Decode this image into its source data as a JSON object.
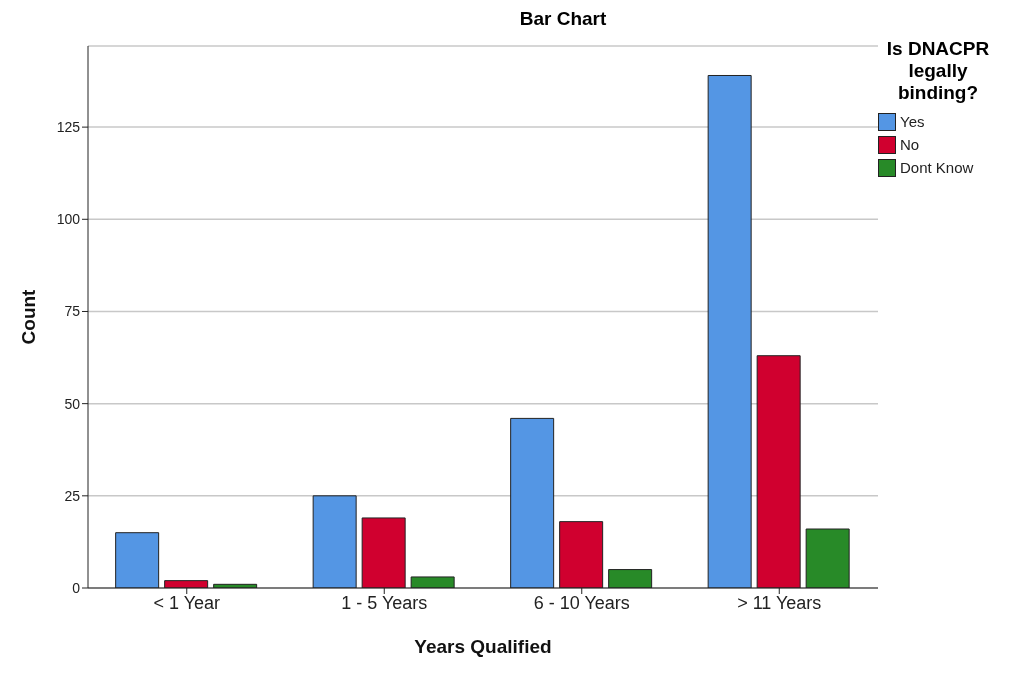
{
  "chart_data": {
    "type": "bar",
    "title": "Bar Chart",
    "xlabel": "Years Qualified",
    "ylabel": "Count",
    "legend_title": "Is DNACPR legally binding?",
    "categories": [
      "< 1 Year",
      "1 - 5 Years",
      "6 - 10 Years",
      "> 11 Years"
    ],
    "series": [
      {
        "name": "Yes",
        "color": "#5496e4",
        "values": [
          15,
          25,
          46,
          139
        ]
      },
      {
        "name": "No",
        "color": "#d0002f",
        "values": [
          2,
          19,
          18,
          63
        ]
      },
      {
        "name": "Dont Know",
        "color": "#288a28",
        "values": [
          1,
          3,
          5,
          16
        ]
      }
    ],
    "ylim": [
      0,
      147
    ],
    "yticks": [
      0,
      25,
      50,
      75,
      100,
      125
    ],
    "grid": "y",
    "legend": "top right"
  }
}
